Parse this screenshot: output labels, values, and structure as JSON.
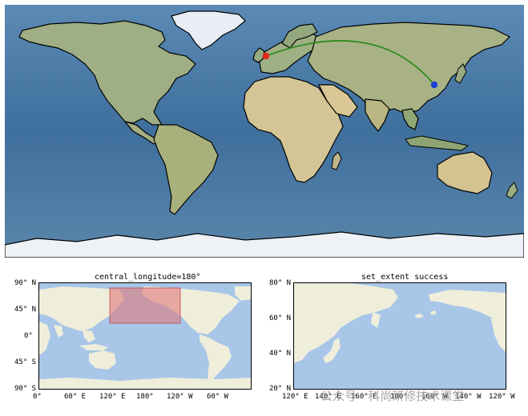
{
  "top_map": {
    "route_color": "#2e8b1e",
    "start_marker_color": "#e8261a",
    "end_marker_color": "#1c3fd6"
  },
  "map1": {
    "title": "central_longitude=180°",
    "y_ticks": [
      "90° N",
      "45° N",
      "0°",
      "45° S",
      "90° S"
    ],
    "x_ticks": [
      "0°",
      "60° E",
      "120° E",
      "180°",
      "120° W",
      "60° W"
    ],
    "highlight_color": "#e07a7a"
  },
  "map2": {
    "title": "set_extent success",
    "y_ticks": [
      "80° N",
      "60° N",
      "40° N",
      "20° N"
    ],
    "x_ticks": [
      "120° E",
      "140° E",
      "160° E",
      "180°",
      "160° W",
      "140° W",
      "120° W"
    ]
  },
  "watermark": {
    "text": "公众号 · 科尚研修技术课堂"
  },
  "colors": {
    "ocean_top": "#4a7aa3",
    "ocean_small": "#a8c6e8",
    "land_small": "#efeedb",
    "ice": "#eef2f7"
  }
}
